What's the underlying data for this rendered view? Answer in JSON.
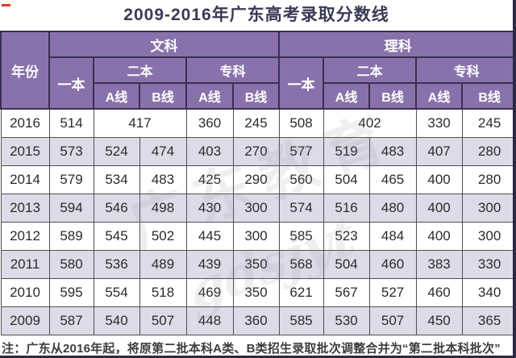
{
  "title": "2009-2016年广东高考录取分数线",
  "note": "注：广东从2016年起，将原第二批本科A类、B类招生录取批次调整合并为“第二批本科批次”",
  "watermark": {
    "text_cn": "广东教育",
    "text_en": "gdsjyt"
  },
  "colors": {
    "header_bg": "#8972ab",
    "header_border": "#39304f",
    "row_alt_bg": "#dedbe9",
    "row_bg": "#ffffff",
    "cell_border": "#4f4f4f",
    "title_text": "#3a3a55",
    "data_text": "#2b2b2b",
    "accent_red": "#e03a2f"
  },
  "chart_data": {
    "type": "table",
    "title": "2009-2016年广东高考录取分数线",
    "header": {
      "year": "年份",
      "wenke": "文科",
      "like": "理科",
      "yiben": "一本",
      "erben": "二本",
      "zhuanke": "专科",
      "line_a": "A线",
      "line_b": "B线"
    },
    "rows": [
      {
        "year": "2016",
        "cells": [
          {
            "v": "514"
          },
          {
            "v": "417",
            "span": 2
          },
          {
            "v": "360"
          },
          {
            "v": "245"
          },
          {
            "v": "508"
          },
          {
            "v": "402",
            "span": 2
          },
          {
            "v": "330"
          },
          {
            "v": "245"
          }
        ]
      },
      {
        "year": "2015",
        "cells": [
          {
            "v": "573"
          },
          {
            "v": "524"
          },
          {
            "v": "474"
          },
          {
            "v": "403"
          },
          {
            "v": "270"
          },
          {
            "v": "577"
          },
          {
            "v": "519"
          },
          {
            "v": "483"
          },
          {
            "v": "407"
          },
          {
            "v": "280"
          }
        ]
      },
      {
        "year": "2014",
        "cells": [
          {
            "v": "579"
          },
          {
            "v": "534"
          },
          {
            "v": "483"
          },
          {
            "v": "425"
          },
          {
            "v": "290"
          },
          {
            "v": "560"
          },
          {
            "v": "504"
          },
          {
            "v": "465"
          },
          {
            "v": "400"
          },
          {
            "v": "280"
          }
        ]
      },
      {
        "year": "2013",
        "cells": [
          {
            "v": "594"
          },
          {
            "v": "546"
          },
          {
            "v": "498"
          },
          {
            "v": "430"
          },
          {
            "v": "300"
          },
          {
            "v": "574"
          },
          {
            "v": "516"
          },
          {
            "v": "480"
          },
          {
            "v": "400"
          },
          {
            "v": "300"
          }
        ]
      },
      {
        "year": "2012",
        "cells": [
          {
            "v": "589"
          },
          {
            "v": "545"
          },
          {
            "v": "502"
          },
          {
            "v": "445"
          },
          {
            "v": "300"
          },
          {
            "v": "585"
          },
          {
            "v": "523"
          },
          {
            "v": "484"
          },
          {
            "v": "400"
          },
          {
            "v": "300"
          }
        ]
      },
      {
        "year": "2011",
        "cells": [
          {
            "v": "580"
          },
          {
            "v": "536"
          },
          {
            "v": "489"
          },
          {
            "v": "439"
          },
          {
            "v": "350"
          },
          {
            "v": "568"
          },
          {
            "v": "504"
          },
          {
            "v": "460"
          },
          {
            "v": "383"
          },
          {
            "v": "330"
          }
        ]
      },
      {
        "year": "2010",
        "cells": [
          {
            "v": "595"
          },
          {
            "v": "554"
          },
          {
            "v": "518"
          },
          {
            "v": "469"
          },
          {
            "v": "350"
          },
          {
            "v": "621"
          },
          {
            "v": "567"
          },
          {
            "v": "527"
          },
          {
            "v": "460"
          },
          {
            "v": "340"
          }
        ]
      },
      {
        "year": "2009",
        "cells": [
          {
            "v": "587"
          },
          {
            "v": "540"
          },
          {
            "v": "507"
          },
          {
            "v": "448"
          },
          {
            "v": "360"
          },
          {
            "v": "585"
          },
          {
            "v": "530"
          },
          {
            "v": "507"
          },
          {
            "v": "450"
          },
          {
            "v": "365"
          }
        ]
      }
    ],
    "footnote": "注：广东从2016年起，将原第二批本科A类、B类招生录取批次调整合并为“第二批本科批次”"
  }
}
